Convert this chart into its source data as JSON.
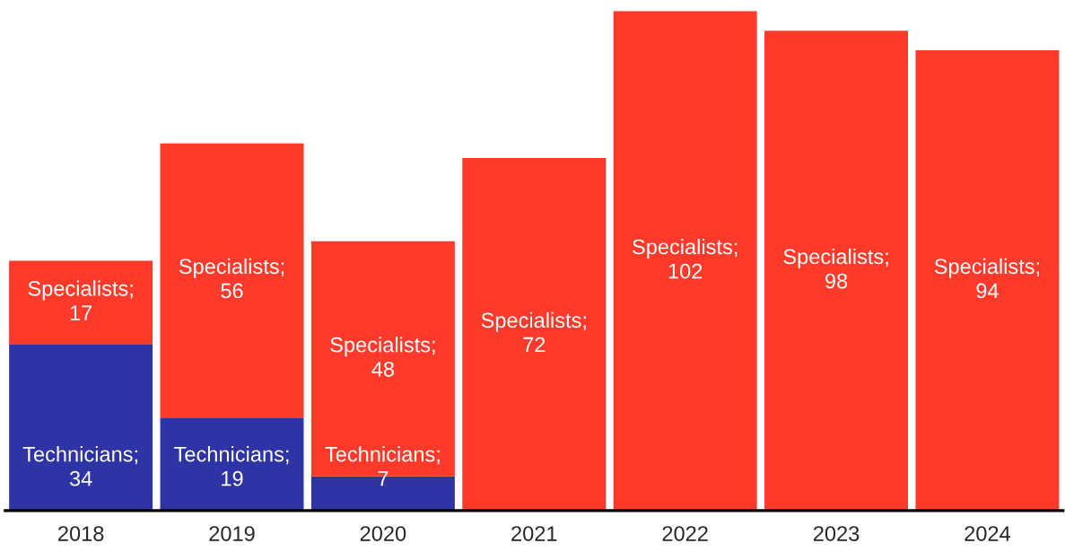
{
  "chart_data": {
    "type": "bar",
    "stacked": true,
    "categories": [
      "2018",
      "2019",
      "2020",
      "2021",
      "2022",
      "2023",
      "2024"
    ],
    "series": [
      {
        "color": "#2e33a6",
        "values": [
          34,
          19,
          7,
          null,
          null,
          null,
          null
        ],
        "value_labels": [
          "Technicians;\n34",
          "Technicians;\n19",
          "Technicians;\n7",
          null,
          null,
          null,
          null
        ]
      },
      {
        "color": "#ff3a2b",
        "values": [
          17,
          56,
          48,
          72,
          102,
          98,
          94
        ],
        "value_labels": [
          "Specialists;\n17",
          "Specialists;\n56",
          "Specialists;\n48",
          "Specialists;\n72",
          "Specialists;\n102",
          "Specialists;\n98",
          "Specialists;\n94"
        ]
      }
    ],
    "legend": false,
    "grid": false
  }
}
